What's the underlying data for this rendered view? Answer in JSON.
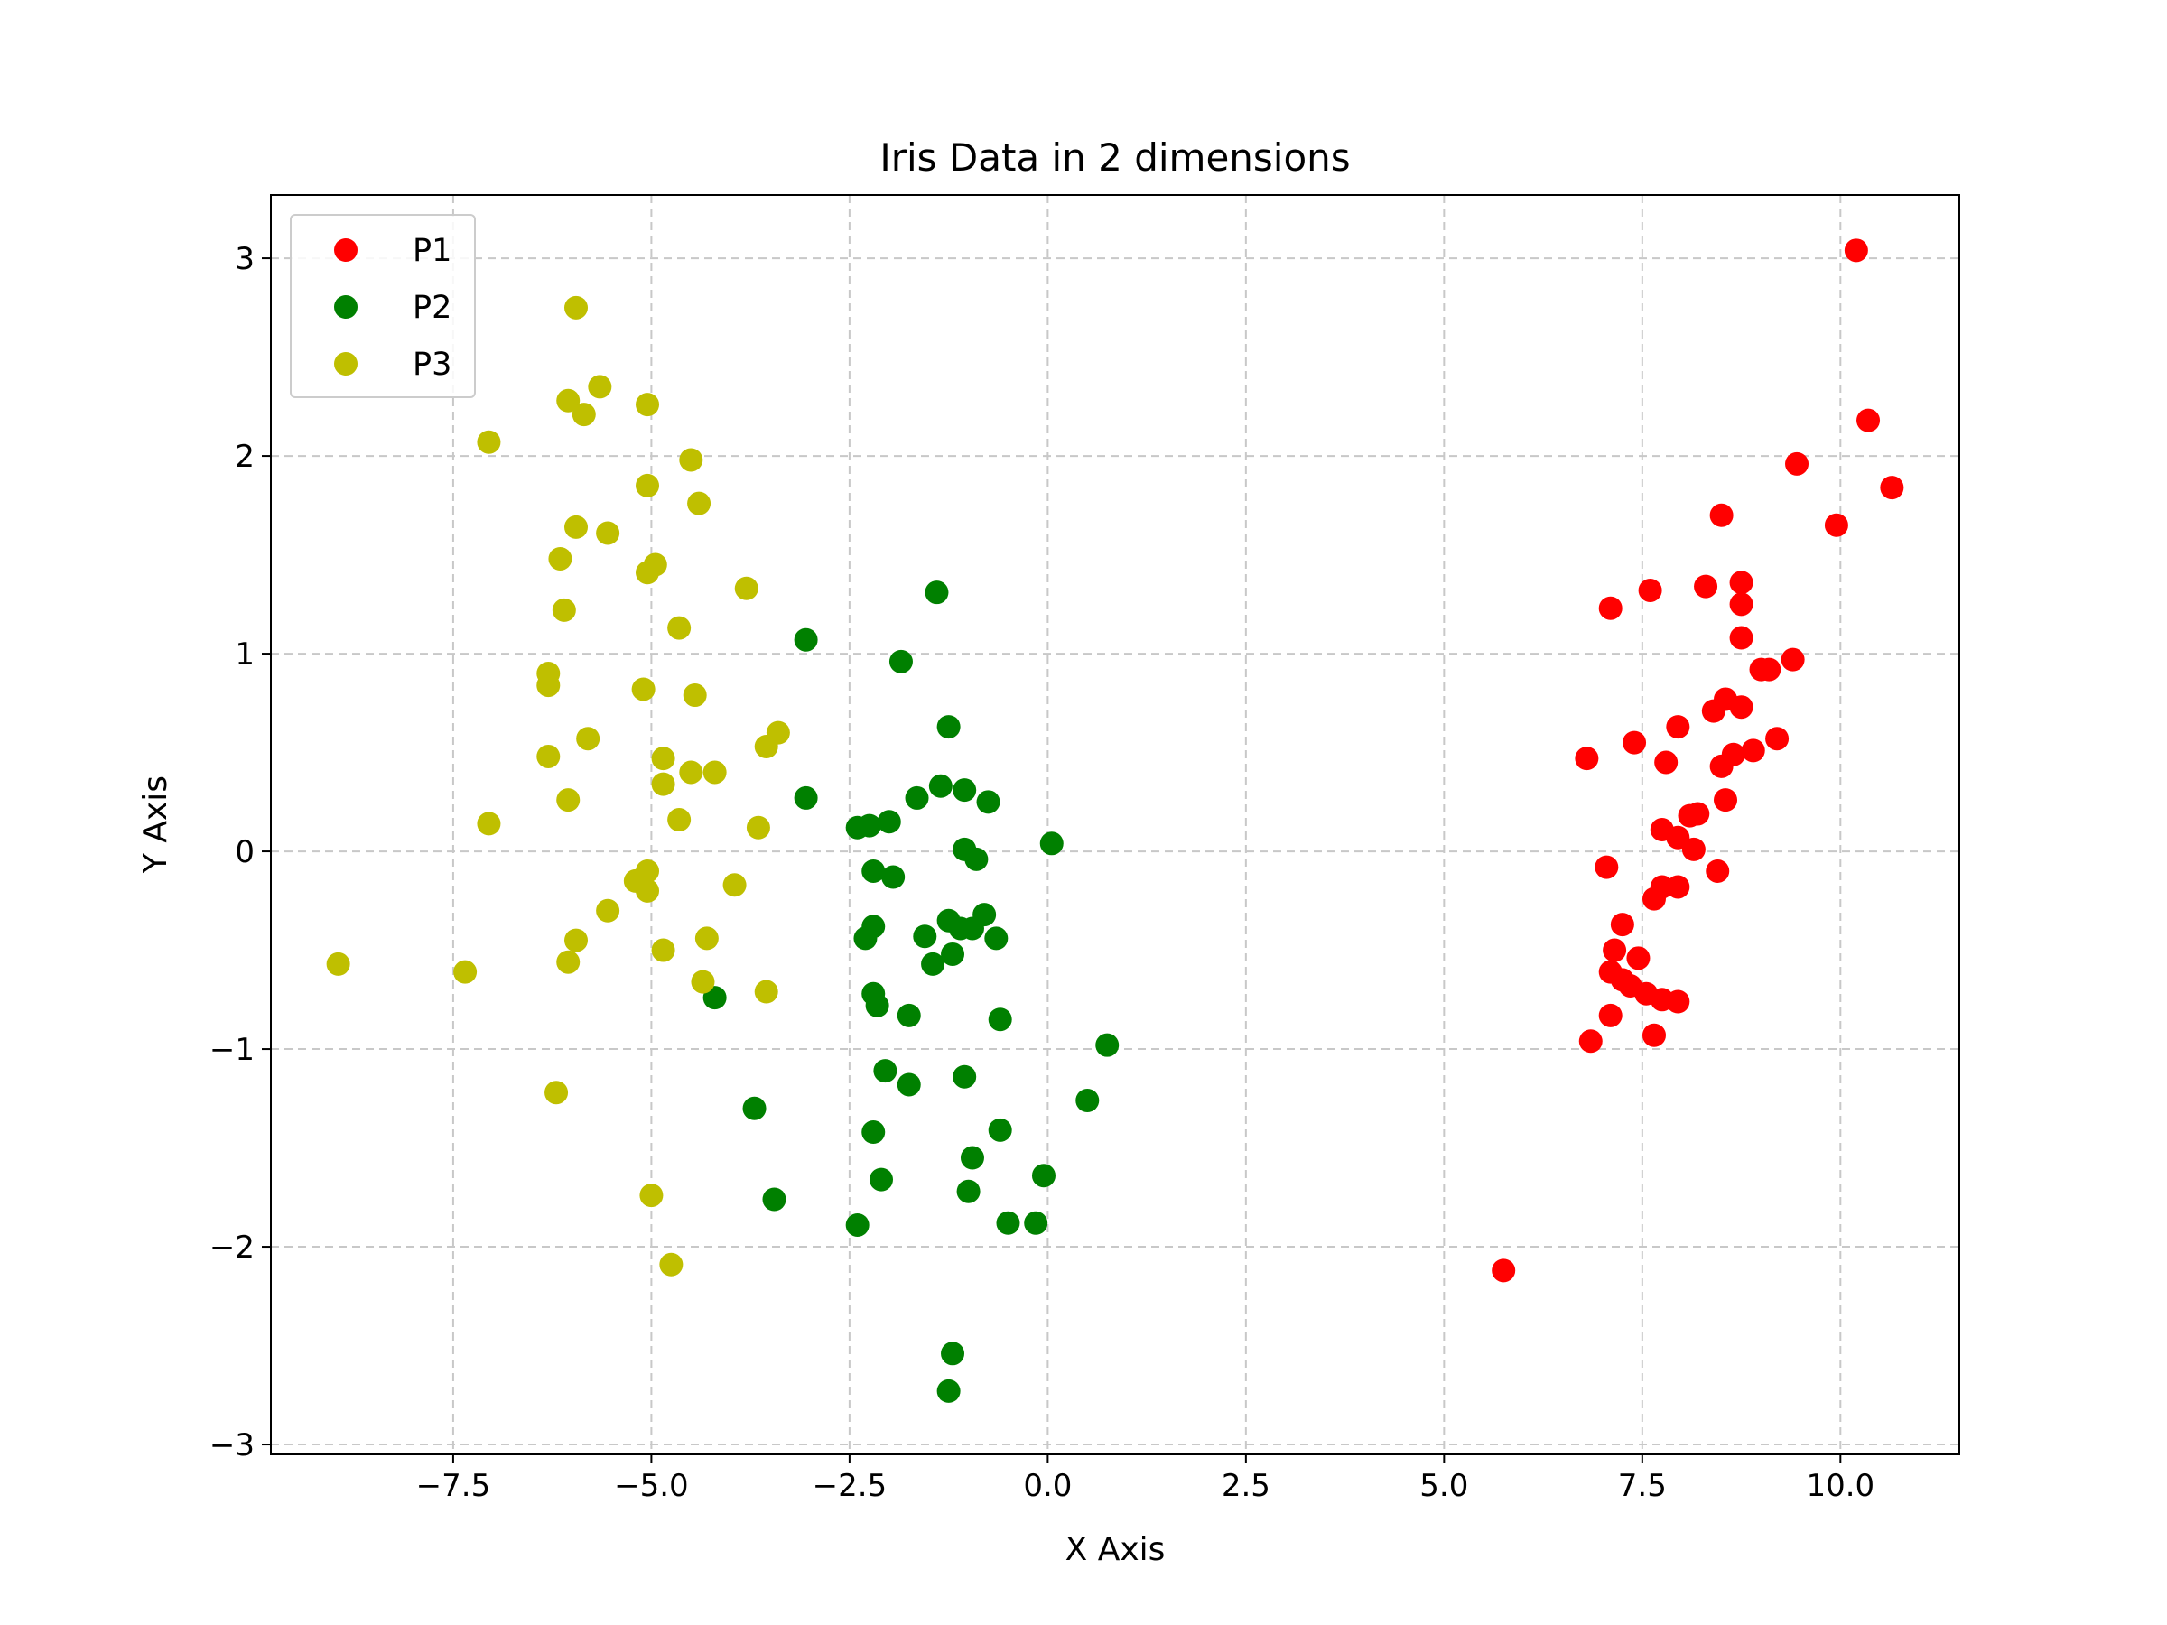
{
  "chart_data": {
    "type": "scatter",
    "title": "Iris Data in 2 dimensions",
    "xlabel": "X Axis",
    "ylabel": "Y Axis",
    "xlim": [
      -9.8,
      11.5
    ],
    "ylim": [
      -3.05,
      3.32
    ],
    "xticks": [
      -7.5,
      -5.0,
      -2.5,
      0.0,
      2.5,
      5.0,
      7.5,
      10.0
    ],
    "xtick_labels": [
      "−7.5",
      "−5.0",
      "−2.5",
      "0.0",
      "2.5",
      "5.0",
      "7.5",
      "10.0"
    ],
    "yticks": [
      -3,
      -2,
      -1,
      0,
      1,
      2,
      3
    ],
    "ytick_labels": [
      "−3",
      "−2",
      "−1",
      "0",
      "1",
      "2",
      "3"
    ],
    "grid": true,
    "legend_position": "top-left",
    "series": [
      {
        "name": "P1",
        "color": "#ff0000",
        "points": [
          [
            10.2,
            3.04
          ],
          [
            10.35,
            2.18
          ],
          [
            10.65,
            1.84
          ],
          [
            9.45,
            1.96
          ],
          [
            9.95,
            1.65
          ],
          [
            8.5,
            1.7
          ],
          [
            7.6,
            1.32
          ],
          [
            7.1,
            1.23
          ],
          [
            8.3,
            1.34
          ],
          [
            8.75,
            1.36
          ],
          [
            8.75,
            1.25
          ],
          [
            8.75,
            1.08
          ],
          [
            9.4,
            0.97
          ],
          [
            9.0,
            0.92
          ],
          [
            9.1,
            0.92
          ],
          [
            8.55,
            0.77
          ],
          [
            8.4,
            0.71
          ],
          [
            8.75,
            0.73
          ],
          [
            7.95,
            0.63
          ],
          [
            9.2,
            0.57
          ],
          [
            7.4,
            0.55
          ],
          [
            8.9,
            0.51
          ],
          [
            8.65,
            0.49
          ],
          [
            6.8,
            0.47
          ],
          [
            7.8,
            0.45
          ],
          [
            8.5,
            0.43
          ],
          [
            8.55,
            0.26
          ],
          [
            8.1,
            0.18
          ],
          [
            8.2,
            0.19
          ],
          [
            7.75,
            0.11
          ],
          [
            7.95,
            0.07
          ],
          [
            8.15,
            0.01
          ],
          [
            8.45,
            -0.1
          ],
          [
            7.05,
            -0.08
          ],
          [
            7.75,
            -0.18
          ],
          [
            7.95,
            -0.18
          ],
          [
            7.65,
            -0.24
          ],
          [
            7.25,
            -0.37
          ],
          [
            7.15,
            -0.5
          ],
          [
            7.45,
            -0.54
          ],
          [
            7.1,
            -0.61
          ],
          [
            7.25,
            -0.65
          ],
          [
            7.35,
            -0.68
          ],
          [
            7.55,
            -0.72
          ],
          [
            7.75,
            -0.75
          ],
          [
            7.95,
            -0.76
          ],
          [
            7.1,
            -0.83
          ],
          [
            7.65,
            -0.93
          ],
          [
            6.85,
            -0.96
          ],
          [
            5.75,
            -2.12
          ]
        ]
      },
      {
        "name": "P2",
        "color": "#008000",
        "points": [
          [
            -1.4,
            1.31
          ],
          [
            -3.05,
            1.07
          ],
          [
            -1.85,
            0.96
          ],
          [
            -1.25,
            0.63
          ],
          [
            -1.35,
            0.33
          ],
          [
            -1.05,
            0.31
          ],
          [
            -0.75,
            0.25
          ],
          [
            -1.65,
            0.27
          ],
          [
            -3.05,
            0.27
          ],
          [
            -2.4,
            0.12
          ],
          [
            -2.25,
            0.13
          ],
          [
            -2.0,
            0.15
          ],
          [
            -1.05,
            0.01
          ],
          [
            0.05,
            0.04
          ],
          [
            -0.9,
            -0.04
          ],
          [
            -2.2,
            -0.1
          ],
          [
            -1.95,
            -0.13
          ],
          [
            -1.25,
            -0.35
          ],
          [
            -1.1,
            -0.39
          ],
          [
            -0.95,
            -0.39
          ],
          [
            -0.8,
            -0.32
          ],
          [
            -2.2,
            -0.38
          ],
          [
            -1.55,
            -0.43
          ],
          [
            -0.65,
            -0.44
          ],
          [
            -2.3,
            -0.44
          ],
          [
            -1.2,
            -0.52
          ],
          [
            -1.45,
            -0.57
          ],
          [
            -2.2,
            -0.72
          ],
          [
            -4.2,
            -0.74
          ],
          [
            -2.15,
            -0.78
          ],
          [
            -1.75,
            -0.83
          ],
          [
            -0.6,
            -0.85
          ],
          [
            0.75,
            -0.98
          ],
          [
            -2.05,
            -1.11
          ],
          [
            -1.05,
            -1.14
          ],
          [
            -1.75,
            -1.18
          ],
          [
            0.5,
            -1.26
          ],
          [
            -3.7,
            -1.3
          ],
          [
            -0.6,
            -1.41
          ],
          [
            -2.2,
            -1.42
          ],
          [
            -0.95,
            -1.55
          ],
          [
            -0.05,
            -1.64
          ],
          [
            -2.1,
            -1.66
          ],
          [
            -1.0,
            -1.72
          ],
          [
            -3.45,
            -1.76
          ],
          [
            -2.4,
            -1.89
          ],
          [
            -0.5,
            -1.88
          ],
          [
            -0.15,
            -1.88
          ],
          [
            -1.2,
            -2.54
          ],
          [
            -1.25,
            -2.73
          ]
        ]
      },
      {
        "name": "P3",
        "color": "#bfbf00",
        "points": [
          [
            -5.95,
            2.75
          ],
          [
            -5.65,
            2.35
          ],
          [
            -6.05,
            2.28
          ],
          [
            -5.85,
            2.21
          ],
          [
            -5.05,
            2.26
          ],
          [
            -7.05,
            2.07
          ],
          [
            -4.5,
            1.98
          ],
          [
            -5.05,
            1.85
          ],
          [
            -4.4,
            1.76
          ],
          [
            -5.95,
            1.64
          ],
          [
            -5.55,
            1.61
          ],
          [
            -6.15,
            1.48
          ],
          [
            -4.95,
            1.45
          ],
          [
            -5.05,
            1.41
          ],
          [
            -3.8,
            1.33
          ],
          [
            -6.1,
            1.22
          ],
          [
            -4.65,
            1.13
          ],
          [
            -6.3,
            0.9
          ],
          [
            -6.3,
            0.84
          ],
          [
            -5.1,
            0.82
          ],
          [
            -4.45,
            0.79
          ],
          [
            -3.4,
            0.6
          ],
          [
            -5.8,
            0.57
          ],
          [
            -3.55,
            0.53
          ],
          [
            -6.3,
            0.48
          ],
          [
            -4.85,
            0.47
          ],
          [
            -4.5,
            0.4
          ],
          [
            -4.2,
            0.4
          ],
          [
            -4.85,
            0.34
          ],
          [
            -6.05,
            0.26
          ],
          [
            -4.65,
            0.16
          ],
          [
            -7.05,
            0.14
          ],
          [
            -3.65,
            0.12
          ],
          [
            -5.05,
            -0.1
          ],
          [
            -5.2,
            -0.15
          ],
          [
            -5.05,
            -0.2
          ],
          [
            -3.95,
            -0.17
          ],
          [
            -5.55,
            -0.3
          ],
          [
            -4.3,
            -0.44
          ],
          [
            -5.95,
            -0.45
          ],
          [
            -4.85,
            -0.5
          ],
          [
            -6.05,
            -0.56
          ],
          [
            -8.95,
            -0.57
          ],
          [
            -7.35,
            -0.61
          ],
          [
            -4.35,
            -0.66
          ],
          [
            -3.55,
            -0.71
          ],
          [
            -6.2,
            -1.22
          ],
          [
            -5.0,
            -1.74
          ],
          [
            -4.75,
            -2.09
          ]
        ]
      }
    ]
  }
}
